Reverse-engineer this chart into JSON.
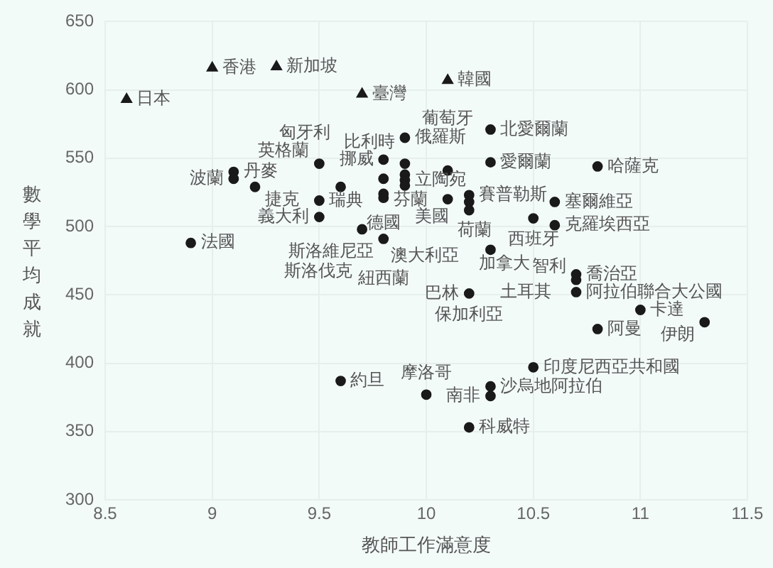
{
  "chart_data": {
    "type": "scatter",
    "xlabel": "教師工作滿意度",
    "ylabel": "數學平均成就",
    "xlim": [
      8.5,
      11.5
    ],
    "xticks": [
      8.5,
      9,
      9.5,
      10,
      10.5,
      11,
      11.5
    ],
    "ylim": [
      300,
      650
    ],
    "yticks": [
      300,
      350,
      400,
      450,
      500,
      550,
      600,
      650
    ],
    "grid": true,
    "legend": false,
    "series": [
      {
        "color": "#1a1a1a",
        "marker": "triangle",
        "x": [
          8.6,
          9.0,
          9.3,
          9.7,
          10.1
        ],
        "values": [
          593,
          616,
          617,
          597,
          607
        ]
      },
      {
        "color": "#1a1a1a",
        "marker": "circle",
        "x": [
          9.9,
          9.8,
          9.9,
          9.5,
          9.1,
          9.1,
          9.2,
          9.6,
          9.8,
          9.9,
          9.9,
          9.9,
          9.8,
          9.8,
          9.5,
          9.5,
          9.7,
          9.8,
          8.9,
          10.1,
          10.1,
          10.3,
          10.3,
          10.8,
          10.2,
          10.2,
          10.2,
          10.6,
          10.5,
          10.6,
          10.3,
          10.7,
          10.7,
          10.7,
          10.2,
          11.0,
          11.3,
          10.8,
          10.5,
          10.3,
          10.3,
          10.0,
          10.2,
          9.6
        ],
        "values": [
          565,
          549,
          546,
          546,
          540,
          535,
          529,
          529,
          535,
          538,
          534,
          530,
          524,
          521,
          519,
          507,
          498,
          491,
          488,
          541,
          520,
          571,
          547,
          544,
          523,
          518,
          512,
          518,
          506,
          501,
          483,
          465,
          461,
          452,
          451,
          439,
          430,
          425,
          397,
          383,
          376,
          377,
          353,
          387
        ]
      }
    ],
    "annotations": [
      {
        "text": "日本",
        "x": 8.6,
        "y": 593
      },
      {
        "text": "香港",
        "x": 9.0,
        "y": 616
      },
      {
        "text": "新加坡",
        "x": 9.3,
        "y": 617
      },
      {
        "text": "臺灣",
        "x": 9.7,
        "y": 597
      },
      {
        "text": "韓國",
        "x": 10.1,
        "y": 607
      },
      {
        "text": "挪威",
        "x": 9.8,
        "y": 549
      },
      {
        "text": "俄羅斯",
        "x": 9.9,
        "y": 565
      },
      {
        "text": "北愛爾蘭",
        "x": 10.3,
        "y": 571
      },
      {
        "text": "比利時",
        "x": 9.9,
        "y": 546
      },
      {
        "text": "愛爾蘭",
        "x": 10.3,
        "y": 547
      },
      {
        "text": "哈薩克",
        "x": 10.8,
        "y": 544
      },
      {
        "text": "丹麥",
        "x": 9.1,
        "y": 540
      },
      {
        "text": "英格蘭",
        "x": 9.5,
        "y": 546
      },
      {
        "text": "芬蘭",
        "x": 9.8,
        "y": 535
      },
      {
        "text": "美國",
        "x": 9.9,
        "y": 538
      },
      {
        "text": "葡萄牙",
        "x": 10.1,
        "y": 541
      },
      {
        "text": "波蘭",
        "x": 9.1,
        "y": 535
      },
      {
        "text": "捷克",
        "x": 9.2,
        "y": 529
      },
      {
        "text": "立陶宛",
        "x": 9.9,
        "y": 534
      },
      {
        "text": "賽普勒斯",
        "x": 10.2,
        "y": 523
      },
      {
        "text": "塞爾維亞",
        "x": 10.6,
        "y": 518
      },
      {
        "text": "瑞典",
        "x": 9.5,
        "y": 519
      },
      {
        "text": "匈牙利",
        "x": 9.6,
        "y": 529
      },
      {
        "text": "荷蘭",
        "x": 10.1,
        "y": 520
      },
      {
        "text": "澳大利亞",
        "x": 10.2,
        "y": 518
      },
      {
        "text": "西班牙",
        "x": 10.5,
        "y": 506
      },
      {
        "text": "義大利",
        "x": 9.5,
        "y": 507
      },
      {
        "text": "德國",
        "x": 9.8,
        "y": 524
      },
      {
        "text": "斯洛維尼亞",
        "x": 9.8,
        "y": 521
      },
      {
        "text": "加拿大",
        "x": 10.2,
        "y": 512
      },
      {
        "text": "克羅埃西亞",
        "x": 10.6,
        "y": 501
      },
      {
        "text": "法國",
        "x": 8.9,
        "y": 488
      },
      {
        "text": "斯洛伐克",
        "x": 9.7,
        "y": 498
      },
      {
        "text": "紐西蘭",
        "x": 9.8,
        "y": 491
      },
      {
        "text": "土耳其",
        "x": 10.3,
        "y": 483
      },
      {
        "text": "喬治亞",
        "x": 10.7,
        "y": 465
      },
      {
        "text": "智利",
        "x": 10.7,
        "y": 461
      },
      {
        "text": "阿拉伯聯合大公國",
        "x": 10.7,
        "y": 452
      },
      {
        "text": "巴林",
        "x": 10.2,
        "y": 451
      },
      {
        "text": "保加利亞",
        "x": 10.2,
        "y": 451
      },
      {
        "text": "卡達",
        "x": 11.0,
        "y": 439
      },
      {
        "text": "伊朗",
        "x": 11.3,
        "y": 430
      },
      {
        "text": "阿曼",
        "x": 10.8,
        "y": 425
      },
      {
        "text": "印度尼西亞共和國",
        "x": 10.5,
        "y": 397
      },
      {
        "text": "約旦",
        "x": 9.6,
        "y": 387
      },
      {
        "text": "沙烏地阿拉伯",
        "x": 10.3,
        "y": 383
      },
      {
        "text": "摩洛哥",
        "x": 10.0,
        "y": 377
      },
      {
        "text": "南非",
        "x": 10.3,
        "y": 376
      },
      {
        "text": "科威特",
        "x": 10.2,
        "y": 353
      }
    ]
  }
}
